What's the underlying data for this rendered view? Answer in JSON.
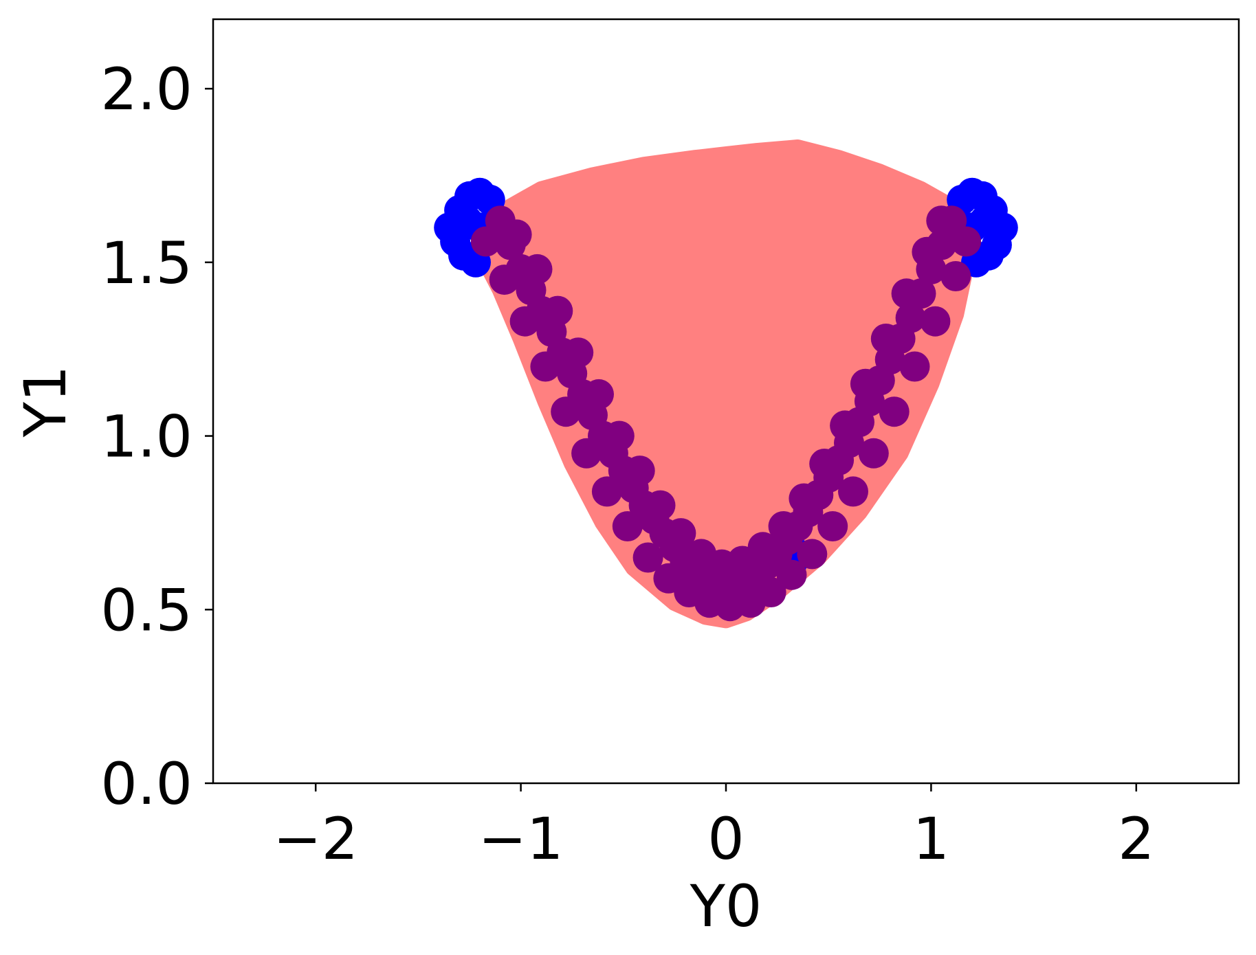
{
  "chart_data": {
    "type": "scatter",
    "title": "",
    "xlabel": "Y0",
    "ylabel": "Y1",
    "xlim": [
      -2.5,
      2.5
    ],
    "ylim": [
      0.0,
      2.2
    ],
    "xticks": [
      -2,
      -1,
      0,
      1,
      2
    ],
    "yticks": [
      0.0,
      0.5,
      1.0,
      1.5,
      2.0
    ],
    "xtick_labels": [
      "−2",
      "−1",
      "0",
      "1",
      "2"
    ],
    "ytick_labels": [
      "0.0",
      "0.5",
      "1.0",
      "1.5",
      "2.0"
    ],
    "grid": false,
    "legend": "none",
    "series": [
      {
        "color": "#ff8080",
        "kind": "filled-region",
        "outline": [
          [
            -1.18,
            1.56
          ],
          [
            -1.05,
            1.66
          ],
          [
            -0.9,
            1.71
          ],
          [
            -0.65,
            1.75
          ],
          [
            -0.4,
            1.78
          ],
          [
            -0.15,
            1.8
          ],
          [
            0.0,
            1.81
          ],
          [
            0.15,
            1.82
          ],
          [
            0.35,
            1.83
          ],
          [
            0.55,
            1.8
          ],
          [
            0.75,
            1.76
          ],
          [
            0.95,
            1.71
          ],
          [
            1.1,
            1.66
          ],
          [
            1.18,
            1.58
          ],
          [
            1.17,
            1.49
          ],
          [
            1.12,
            1.35
          ],
          [
            1.0,
            1.15
          ],
          [
            0.85,
            0.95
          ],
          [
            0.65,
            0.78
          ],
          [
            0.45,
            0.65
          ],
          [
            0.25,
            0.55
          ],
          [
            0.1,
            0.49
          ],
          [
            0.0,
            0.47
          ],
          [
            -0.1,
            0.48
          ],
          [
            -0.25,
            0.52
          ],
          [
            -0.45,
            0.62
          ],
          [
            -0.6,
            0.75
          ],
          [
            -0.75,
            0.92
          ],
          [
            -0.88,
            1.1
          ],
          [
            -1.0,
            1.28
          ],
          [
            -1.1,
            1.42
          ],
          [
            -1.17,
            1.5
          ]
        ]
      },
      {
        "color": "#0000ff",
        "kind": "scatter",
        "points": [
          [
            -1.35,
            1.6
          ],
          [
            -1.3,
            1.65
          ],
          [
            -1.25,
            1.69
          ],
          [
            -1.2,
            1.7
          ],
          [
            -1.15,
            1.68
          ],
          [
            -1.32,
            1.56
          ],
          [
            -1.28,
            1.52
          ],
          [
            -1.22,
            1.5
          ],
          [
            -1.26,
            1.62
          ],
          [
            -1.2,
            1.6
          ],
          [
            1.35,
            1.6
          ],
          [
            1.3,
            1.65
          ],
          [
            1.25,
            1.69
          ],
          [
            1.2,
            1.7
          ],
          [
            1.15,
            1.68
          ],
          [
            1.32,
            1.55
          ],
          [
            1.28,
            1.52
          ],
          [
            1.22,
            1.5
          ],
          [
            1.26,
            1.62
          ],
          [
            1.2,
            1.6
          ],
          [
            0.35,
            0.66
          ],
          [
            0.32,
            0.63
          ]
        ]
      },
      {
        "color": "#800080",
        "kind": "scatter",
        "points": [
          [
            -1.1,
            1.62
          ],
          [
            -1.05,
            1.55
          ],
          [
            -1.0,
            1.48
          ],
          [
            -0.95,
            1.42
          ],
          [
            -0.9,
            1.36
          ],
          [
            -0.85,
            1.3
          ],
          [
            -0.8,
            1.24
          ],
          [
            -0.75,
            1.18
          ],
          [
            -0.7,
            1.12
          ],
          [
            -0.65,
            1.06
          ],
          [
            -0.6,
            1.0
          ],
          [
            -0.55,
            0.95
          ],
          [
            -0.5,
            0.9
          ],
          [
            -0.45,
            0.85
          ],
          [
            -0.4,
            0.8
          ],
          [
            -0.35,
            0.76
          ],
          [
            -0.3,
            0.72
          ],
          [
            -0.25,
            0.68
          ],
          [
            -0.2,
            0.64
          ],
          [
            -0.15,
            0.61
          ],
          [
            -0.1,
            0.58
          ],
          [
            -0.05,
            0.56
          ],
          [
            0.0,
            0.55
          ],
          [
            0.05,
            0.56
          ],
          [
            0.1,
            0.58
          ],
          [
            0.15,
            0.6
          ],
          [
            0.2,
            0.63
          ],
          [
            0.25,
            0.66
          ],
          [
            0.3,
            0.7
          ],
          [
            0.35,
            0.74
          ],
          [
            0.4,
            0.78
          ],
          [
            0.45,
            0.83
          ],
          [
            0.5,
            0.88
          ],
          [
            0.55,
            0.93
          ],
          [
            0.6,
            0.98
          ],
          [
            0.65,
            1.04
          ],
          [
            0.7,
            1.1
          ],
          [
            0.75,
            1.16
          ],
          [
            0.8,
            1.22
          ],
          [
            0.85,
            1.28
          ],
          [
            0.9,
            1.34
          ],
          [
            0.95,
            1.41
          ],
          [
            1.0,
            1.48
          ],
          [
            1.05,
            1.55
          ],
          [
            1.1,
            1.62
          ],
          [
            -1.17,
            1.56
          ],
          [
            -1.08,
            1.45
          ],
          [
            -0.98,
            1.33
          ],
          [
            -0.88,
            1.2
          ],
          [
            -0.78,
            1.07
          ],
          [
            -0.68,
            0.95
          ],
          [
            -0.58,
            0.84
          ],
          [
            -0.48,
            0.74
          ],
          [
            -0.38,
            0.65
          ],
          [
            -0.28,
            0.59
          ],
          [
            -0.18,
            0.55
          ],
          [
            -0.08,
            0.52
          ],
          [
            0.02,
            0.51
          ],
          [
            0.12,
            0.52
          ],
          [
            0.22,
            0.55
          ],
          [
            0.32,
            0.6
          ],
          [
            0.42,
            0.66
          ],
          [
            0.52,
            0.74
          ],
          [
            0.62,
            0.84
          ],
          [
            0.72,
            0.95
          ],
          [
            0.82,
            1.07
          ],
          [
            0.92,
            1.2
          ],
          [
            1.02,
            1.33
          ],
          [
            1.12,
            1.46
          ],
          [
            1.17,
            1.56
          ],
          [
            -1.02,
            1.58
          ],
          [
            -0.92,
            1.48
          ],
          [
            -0.82,
            1.36
          ],
          [
            -0.72,
            1.24
          ],
          [
            -0.62,
            1.12
          ],
          [
            -0.52,
            1.0
          ],
          [
            -0.42,
            0.9
          ],
          [
            -0.32,
            0.8
          ],
          [
            -0.22,
            0.72
          ],
          [
            -0.12,
            0.66
          ],
          [
            -0.02,
            0.63
          ],
          [
            0.08,
            0.64
          ],
          [
            0.18,
            0.68
          ],
          [
            0.28,
            0.74
          ],
          [
            0.38,
            0.82
          ],
          [
            0.48,
            0.92
          ],
          [
            0.58,
            1.03
          ],
          [
            0.68,
            1.15
          ],
          [
            0.78,
            1.28
          ],
          [
            0.88,
            1.41
          ],
          [
            0.98,
            1.53
          ],
          [
            1.05,
            1.62
          ]
        ]
      }
    ]
  }
}
